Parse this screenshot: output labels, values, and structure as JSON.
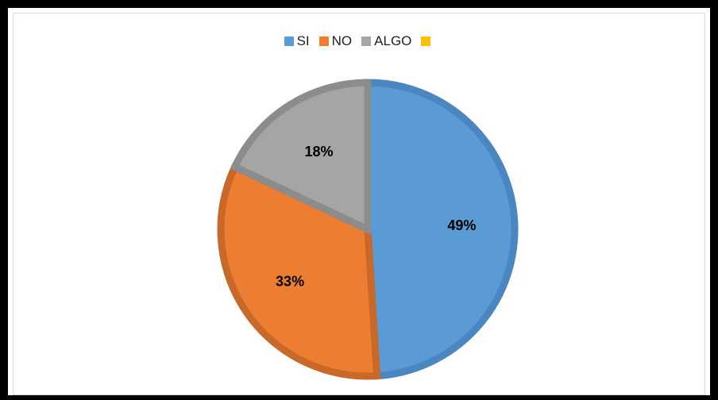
{
  "chart_data": {
    "type": "pie",
    "categories": [
      "SI",
      "NO",
      "ALGO",
      ""
    ],
    "values": [
      49,
      33,
      18,
      0
    ],
    "data_labels": [
      "49%",
      "33%",
      "18%",
      ""
    ],
    "colors": [
      "#5b9bd5",
      "#ed7d31",
      "#a5a5a5",
      "#ffc000"
    ],
    "border_colors": [
      "#4a86c0",
      "#c8692a",
      "#8c8c8c",
      "#d9a300"
    ],
    "legend_position": "top",
    "start_angle_deg": 0,
    "direction": "clockwise"
  }
}
